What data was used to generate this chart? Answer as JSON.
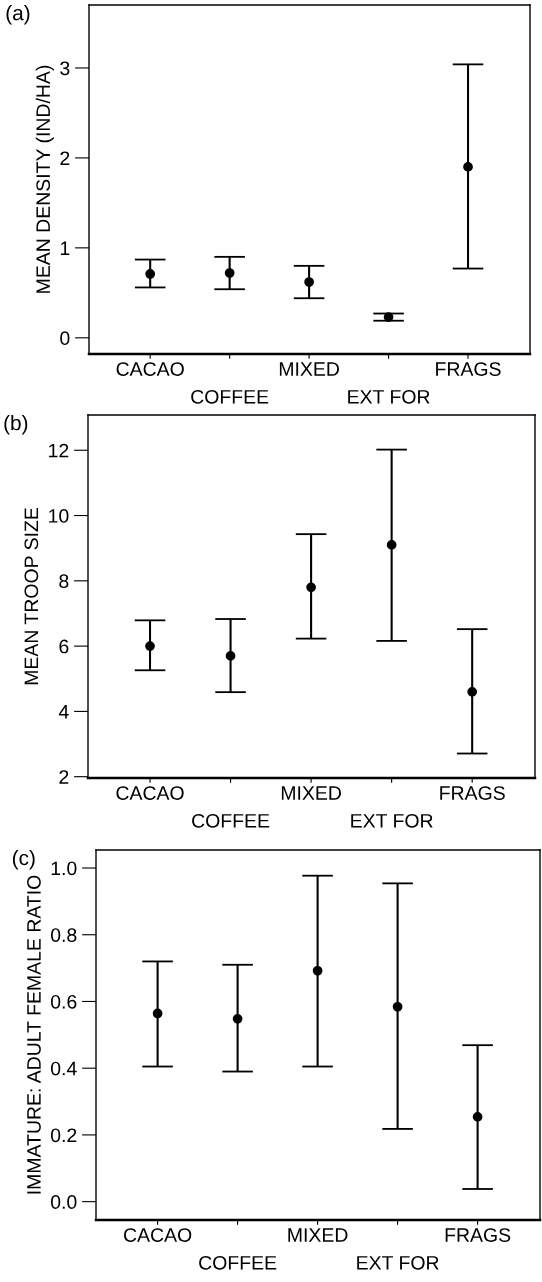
{
  "chart_data": [
    {
      "type": "scatter",
      "title": "(a)",
      "ylabel": "MEAN DENSITY (IND/HA)",
      "categories": [
        "CACAO",
        "COFFEE",
        "MIXED",
        "EXT FOR",
        "FRAGS"
      ],
      "marker": "circle",
      "series": [
        {
          "color": "#000000",
          "values": [
            0.71,
            0.72,
            0.62,
            0.23,
            1.9
          ],
          "errors": [
            [
              0.56,
              0.87
            ],
            [
              0.54,
              0.9
            ],
            [
              0.44,
              0.8
            ],
            [
              0.19,
              0.27
            ],
            [
              0.77,
              3.04
            ]
          ]
        }
      ],
      "ylim": [
        -0.18,
        3.7
      ],
      "yticks": [
        0,
        1,
        2,
        3
      ],
      "grid": false,
      "legend": false
    },
    {
      "type": "scatter",
      "title": "(b)",
      "ylabel": "MEAN TROOP SIZE",
      "categories": [
        "CACAO",
        "COFFEE",
        "MIXED",
        "EXT FOR",
        "FRAGS"
      ],
      "marker": "circle",
      "series": [
        {
          "color": "#000000",
          "values": [
            6.0,
            5.7,
            7.8,
            9.1,
            4.6
          ],
          "errors": [
            [
              5.26,
              6.79
            ],
            [
              4.59,
              6.83
            ],
            [
              6.23,
              9.43
            ],
            [
              6.16,
              12.02
            ],
            [
              2.71,
              6.52
            ]
          ]
        }
      ],
      "ylim": [
        1.96,
        13.08
      ],
      "yticks": [
        2,
        4,
        6,
        8,
        10,
        12
      ],
      "grid": false,
      "legend": false
    },
    {
      "type": "scatter",
      "title": "(c)",
      "ylabel": "IMMATURE: ADULT FEMALE RATIO",
      "categories": [
        "CACAO",
        "COFFEE",
        "MIXED",
        "EXT FOR",
        "FRAGS"
      ],
      "marker": "circle",
      "series": [
        {
          "color": "#000000",
          "values": [
            0.564,
            0.548,
            0.692,
            0.584,
            0.254
          ],
          "errors": [
            [
              0.405,
              0.72
            ],
            [
              0.39,
              0.71
            ],
            [
              0.405,
              0.977
            ],
            [
              0.218,
              0.954
            ],
            [
              0.038,
              0.469
            ]
          ]
        }
      ],
      "ylim": [
        -0.055,
        1.054
      ],
      "yticks": [
        {
          "value": 0,
          "label": "0.0"
        },
        {
          "value": 0.2,
          "label": "0.2"
        },
        {
          "value": 0.4,
          "label": "0.4"
        },
        {
          "value": 0.6,
          "label": "0.6"
        },
        {
          "value": 0.8,
          "label": "0.8"
        },
        {
          "value": 1.0,
          "label": "1.0"
        }
      ],
      "grid": false,
      "legend": false
    }
  ]
}
